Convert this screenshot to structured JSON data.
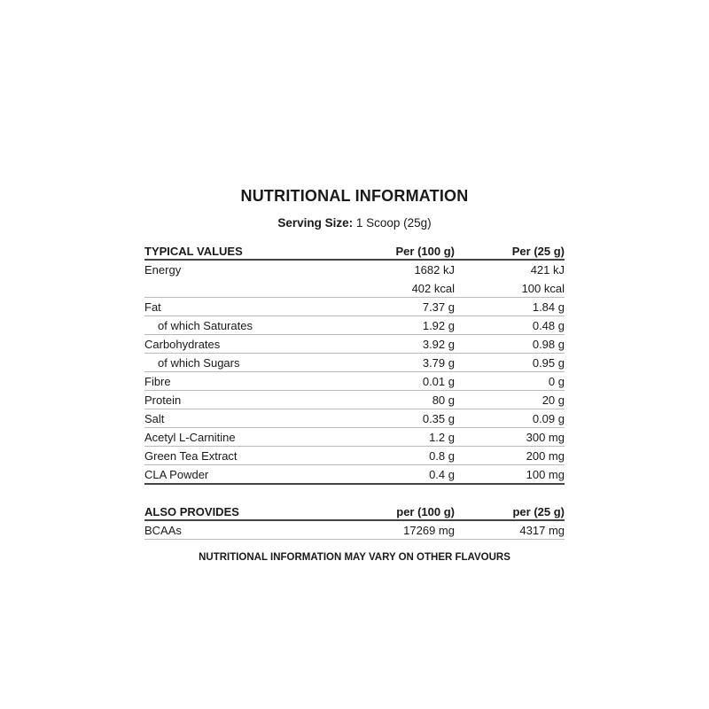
{
  "title": "NUTRITIONAL INFORMATION",
  "serving": {
    "label": "Serving Size:",
    "value": "1 Scoop (25g)"
  },
  "typical": {
    "headers": [
      "TYPICAL VALUES",
      "Per (100 g)",
      "Per (25 g)"
    ],
    "rows": [
      {
        "name": "Energy",
        "per100": "1682 kJ",
        "per25": "421 kJ"
      },
      {
        "name": "",
        "per100": "402 kcal",
        "per25": "100 kcal"
      },
      {
        "name": "Fat",
        "per100": "7.37 g",
        "per25": "1.84 g"
      },
      {
        "name": "of which Saturates",
        "per100": "1.92 g",
        "per25": "0.48 g"
      },
      {
        "name": "Carbohydrates",
        "per100": "3.92 g",
        "per25": "0.98 g"
      },
      {
        "name": "of which Sugars",
        "per100": "3.79 g",
        "per25": "0.95 g"
      },
      {
        "name": "Fibre",
        "per100": "0.01 g",
        "per25": "0 g"
      },
      {
        "name": "Protein",
        "per100": "80 g",
        "per25": "20 g"
      },
      {
        "name": "Salt",
        "per100": "0.35 g",
        "per25": "0.09 g"
      },
      {
        "name": "Acetyl L-Carnitine",
        "per100": "1.2 g",
        "per25": "300 mg"
      },
      {
        "name": "Green Tea Extract",
        "per100": "0.8 g",
        "per25": "200 mg"
      },
      {
        "name": "CLA Powder",
        "per100": "0.4 g",
        "per25": "100 mg"
      }
    ]
  },
  "also": {
    "headers": [
      "ALSO PROVIDES",
      "per (100 g)",
      "per (25 g)"
    ],
    "rows": [
      {
        "name": "BCAAs",
        "per100": "17269 mg",
        "per25": "4317 mg"
      }
    ]
  },
  "footer": "NUTRITIONAL INFORMATION MAY VARY ON OTHER FLAVOURS"
}
